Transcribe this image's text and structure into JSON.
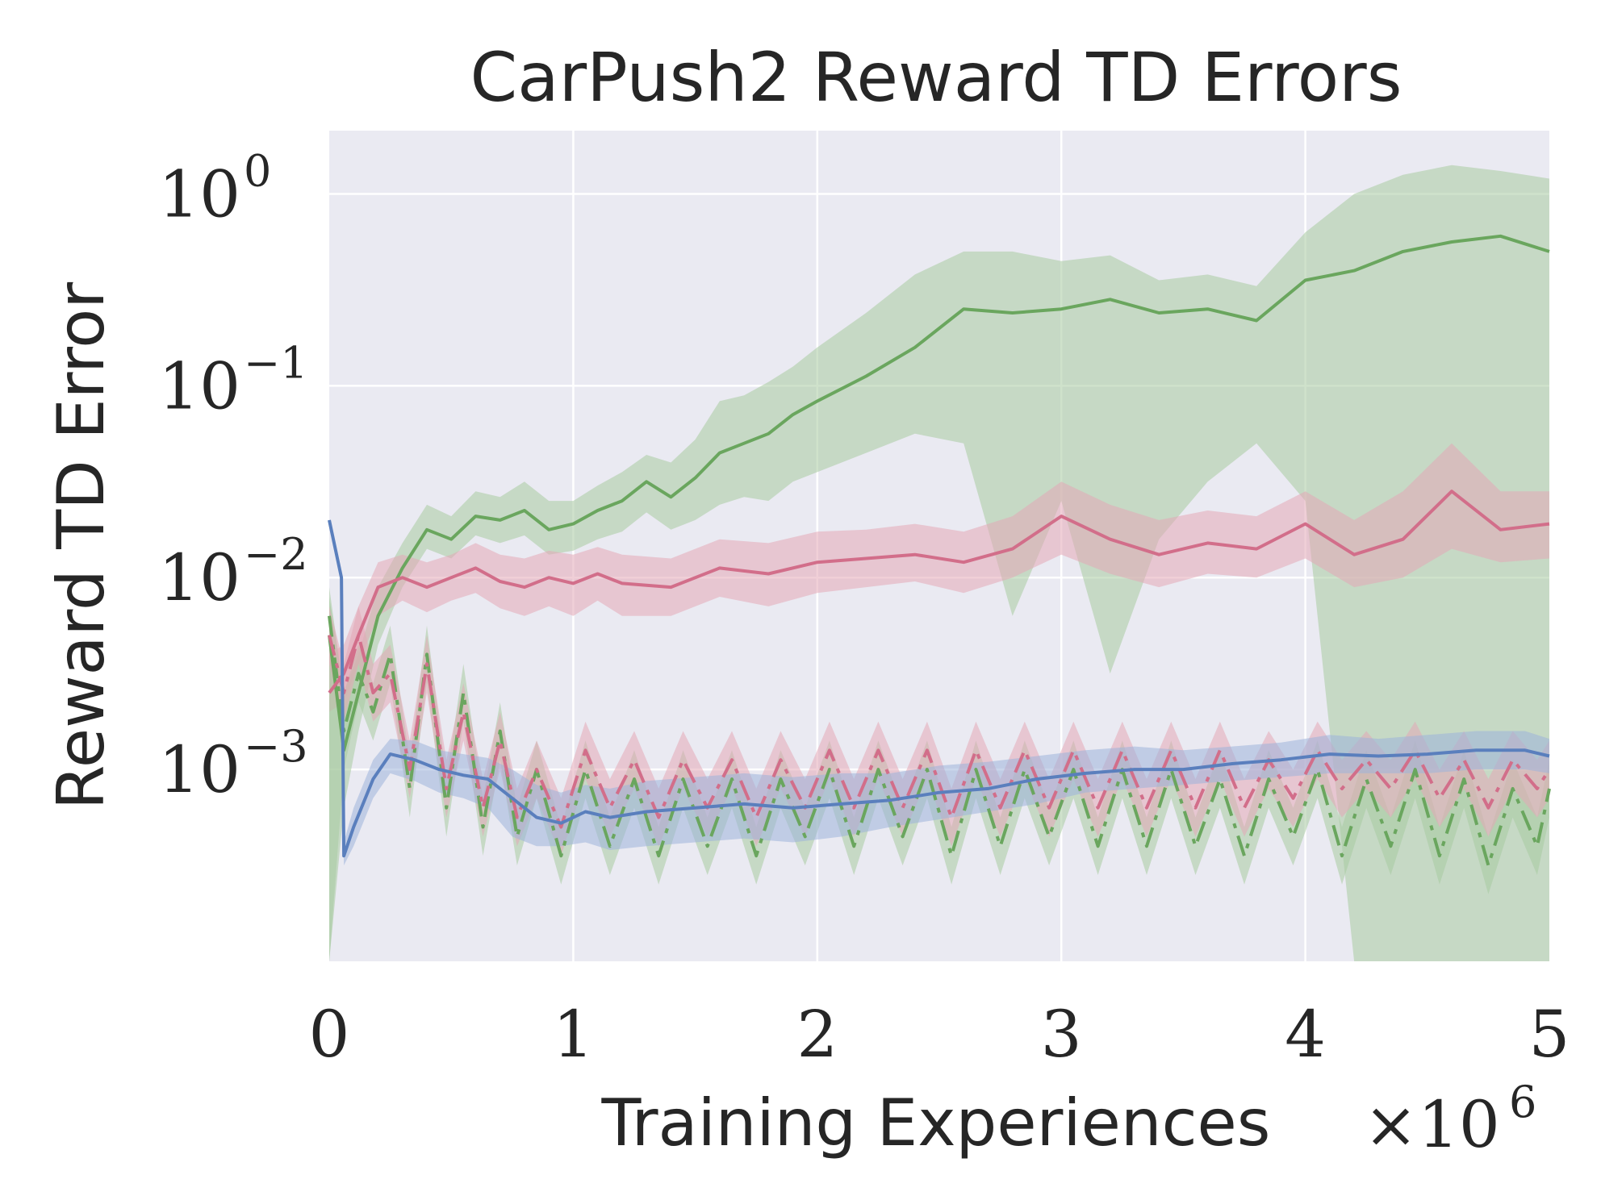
{
  "chart_data": {
    "type": "line",
    "title": "CarPush2 Reward TD Errors",
    "xlabel": "Training Experiences",
    "ylabel": "Reward TD Error",
    "x_multiplier": "×10",
    "x_multiplier_exp": "6",
    "xlim": [
      0,
      5
    ],
    "ylim_log10": [
      -4.0,
      0.33
    ],
    "y_scale": "log",
    "grid": true,
    "x_ticks": [
      {
        "value": 0,
        "label": "0"
      },
      {
        "value": 1,
        "label": "1"
      },
      {
        "value": 2,
        "label": "2"
      },
      {
        "value": 3,
        "label": "3"
      },
      {
        "value": 4,
        "label": "4"
      },
      {
        "value": 5,
        "label": "5"
      }
    ],
    "y_ticks": [
      {
        "log10": 0,
        "base": "10",
        "exp": "0"
      },
      {
        "log10": -1,
        "base": "10",
        "exp": "−1"
      },
      {
        "log10": -2,
        "base": "10",
        "exp": "−2"
      },
      {
        "log10": -3,
        "base": "10",
        "exp": "−3"
      }
    ],
    "series": [
      {
        "name": "green-solid",
        "color": "#6aa65e",
        "band_color": "#a8cba0",
        "dash": "",
        "x": [
          0,
          0.06,
          0.12,
          0.2,
          0.3,
          0.4,
          0.5,
          0.6,
          0.7,
          0.8,
          0.9,
          1.0,
          1.1,
          1.2,
          1.3,
          1.4,
          1.5,
          1.6,
          1.7,
          1.8,
          1.9,
          2.0,
          2.2,
          2.4,
          2.6,
          2.8,
          3.0,
          3.2,
          3.4,
          3.6,
          3.8,
          4.0,
          4.2,
          4.4,
          4.6,
          4.8,
          5.0
        ],
        "log10": [
          -2.3,
          -2.9,
          -2.6,
          -2.2,
          -1.95,
          -1.75,
          -1.8,
          -1.68,
          -1.7,
          -1.65,
          -1.75,
          -1.72,
          -1.65,
          -1.6,
          -1.5,
          -1.58,
          -1.48,
          -1.35,
          -1.3,
          -1.25,
          -1.15,
          -1.08,
          -0.95,
          -0.8,
          -0.6,
          -0.62,
          -0.6,
          -0.55,
          -0.62,
          -0.6,
          -0.66,
          -0.45,
          -0.4,
          -0.3,
          -0.25,
          -0.22,
          -0.3
        ],
        "band_lo": [
          -4.0,
          -3.2,
          -2.8,
          -2.35,
          -2.05,
          -1.85,
          -1.9,
          -1.78,
          -1.82,
          -1.78,
          -1.88,
          -1.86,
          -1.8,
          -1.76,
          -1.66,
          -1.75,
          -1.7,
          -1.62,
          -1.58,
          -1.6,
          -1.5,
          -1.45,
          -1.35,
          -1.25,
          -1.3,
          -2.2,
          -1.6,
          -2.5,
          -1.8,
          -1.5,
          -1.3,
          -1.6,
          -4.0,
          -4.0,
          -4.0,
          -4.0,
          -4.0
        ],
        "band_hi": [
          -2.1,
          -2.6,
          -2.4,
          -2.05,
          -1.82,
          -1.62,
          -1.68,
          -1.55,
          -1.58,
          -1.5,
          -1.6,
          -1.6,
          -1.52,
          -1.45,
          -1.36,
          -1.4,
          -1.28,
          -1.08,
          -1.05,
          -0.98,
          -0.9,
          -0.8,
          -0.62,
          -0.42,
          -0.3,
          -0.3,
          -0.35,
          -0.32,
          -0.45,
          -0.42,
          -0.48,
          -0.2,
          0.0,
          0.1,
          0.15,
          0.12,
          0.08
        ]
      },
      {
        "name": "pink-solid",
        "color": "#d26e8a",
        "band_color": "#e3a7b7",
        "dash": "",
        "x": [
          0,
          0.06,
          0.12,
          0.2,
          0.3,
          0.4,
          0.5,
          0.6,
          0.7,
          0.8,
          0.9,
          1.0,
          1.1,
          1.2,
          1.4,
          1.6,
          1.8,
          2.0,
          2.2,
          2.4,
          2.6,
          2.8,
          3.0,
          3.2,
          3.4,
          3.6,
          3.8,
          4.0,
          4.2,
          4.4,
          4.6,
          4.8,
          5.0
        ],
        "log10": [
          -2.6,
          -2.5,
          -2.3,
          -2.05,
          -2.0,
          -2.05,
          -2.0,
          -1.95,
          -2.02,
          -2.05,
          -2.0,
          -2.03,
          -1.98,
          -2.03,
          -2.05,
          -1.95,
          -1.98,
          -1.92,
          -1.9,
          -1.88,
          -1.92,
          -1.85,
          -1.68,
          -1.8,
          -1.88,
          -1.82,
          -1.85,
          -1.72,
          -1.88,
          -1.8,
          -1.55,
          -1.75,
          -1.72
        ],
        "band_lo": [
          -2.7,
          -2.65,
          -2.45,
          -2.2,
          -2.12,
          -2.18,
          -2.12,
          -2.08,
          -2.16,
          -2.2,
          -2.15,
          -2.2,
          -2.12,
          -2.2,
          -2.2,
          -2.1,
          -2.15,
          -2.08,
          -2.05,
          -2.02,
          -2.08,
          -2.0,
          -1.88,
          -1.98,
          -2.05,
          -1.98,
          -2.0,
          -1.9,
          -2.05,
          -2.0,
          -1.85,
          -1.92,
          -1.9
        ],
        "band_hi": [
          -2.4,
          -2.35,
          -2.15,
          -1.92,
          -1.88,
          -1.92,
          -1.88,
          -1.82,
          -1.88,
          -1.9,
          -1.86,
          -1.88,
          -1.84,
          -1.88,
          -1.9,
          -1.8,
          -1.82,
          -1.76,
          -1.75,
          -1.72,
          -1.76,
          -1.68,
          -1.5,
          -1.62,
          -1.7,
          -1.65,
          -1.68,
          -1.55,
          -1.7,
          -1.55,
          -1.3,
          -1.55,
          -1.55
        ]
      },
      {
        "name": "green-dashdot",
        "color": "#6aa65e",
        "band_color": "#a8cba0",
        "dash": "26 10 6 10",
        "x": [
          0,
          0.06,
          0.12,
          0.18,
          0.25,
          0.33,
          0.4,
          0.48,
          0.55,
          0.63,
          0.7,
          0.77,
          0.85,
          0.95,
          1.05,
          1.15,
          1.25,
          1.35,
          1.45,
          1.55,
          1.65,
          1.75,
          1.85,
          1.95,
          2.05,
          2.15,
          2.25,
          2.35,
          2.45,
          2.55,
          2.65,
          2.75,
          2.85,
          2.95,
          3.05,
          3.15,
          3.25,
          3.35,
          3.45,
          3.55,
          3.65,
          3.75,
          3.85,
          3.95,
          4.05,
          4.15,
          4.25,
          4.35,
          4.45,
          4.55,
          4.65,
          4.75,
          4.85,
          4.95,
          5.0
        ],
        "log10": [
          -2.2,
          -2.8,
          -2.5,
          -2.7,
          -2.4,
          -3.1,
          -2.4,
          -3.2,
          -2.6,
          -3.3,
          -2.8,
          -3.35,
          -3.0,
          -3.45,
          -3.0,
          -3.4,
          -3.05,
          -3.45,
          -3.05,
          -3.4,
          -3.05,
          -3.45,
          -3.05,
          -3.35,
          -3.0,
          -3.4,
          -3.0,
          -3.35,
          -3.0,
          -3.45,
          -3.0,
          -3.4,
          -3.0,
          -3.35,
          -3.0,
          -3.4,
          -3.0,
          -3.4,
          -3.0,
          -3.4,
          -3.05,
          -3.45,
          -3.05,
          -3.35,
          -3.0,
          -3.45,
          -3.05,
          -3.4,
          -3.0,
          -3.45,
          -3.05,
          -3.5,
          -3.1,
          -3.4,
          -3.1
        ],
        "band_lo": [
          -4.0,
          -3.0,
          -2.65,
          -2.85,
          -2.55,
          -3.25,
          -2.55,
          -3.35,
          -2.75,
          -3.45,
          -2.95,
          -3.5,
          -3.15,
          -3.6,
          -3.15,
          -3.55,
          -3.2,
          -3.6,
          -3.2,
          -3.55,
          -3.2,
          -3.6,
          -3.2,
          -3.5,
          -3.15,
          -3.55,
          -3.15,
          -3.5,
          -3.15,
          -3.6,
          -3.15,
          -3.55,
          -3.15,
          -3.5,
          -3.15,
          -3.55,
          -3.15,
          -3.55,
          -3.15,
          -3.55,
          -3.2,
          -3.6,
          -3.2,
          -3.5,
          -3.15,
          -3.6,
          -3.2,
          -3.55,
          -3.15,
          -3.6,
          -3.2,
          -3.65,
          -3.25,
          -3.55,
          -3.25
        ],
        "band_hi": [
          -2.05,
          -2.6,
          -2.35,
          -2.55,
          -2.25,
          -2.95,
          -2.25,
          -3.05,
          -2.45,
          -3.15,
          -2.65,
          -3.2,
          -2.85,
          -3.3,
          -2.85,
          -3.25,
          -2.9,
          -3.3,
          -2.9,
          -3.25,
          -2.9,
          -3.3,
          -2.9,
          -3.2,
          -2.85,
          -3.25,
          -2.85,
          -3.2,
          -2.85,
          -3.3,
          -2.85,
          -3.25,
          -2.85,
          -3.2,
          -2.85,
          -3.25,
          -2.85,
          -3.25,
          -2.85,
          -3.25,
          -2.9,
          -3.3,
          -2.9,
          -3.2,
          -2.85,
          -3.3,
          -2.9,
          -3.25,
          -2.85,
          -3.3,
          -2.9,
          -3.35,
          -2.95,
          -3.25,
          -2.95
        ]
      },
      {
        "name": "pink-dashdot",
        "color": "#d26e8a",
        "band_color": "#e3a7b7",
        "dash": "26 10 6 10",
        "x": [
          0,
          0.06,
          0.12,
          0.18,
          0.25,
          0.33,
          0.4,
          0.48,
          0.55,
          0.63,
          0.7,
          0.77,
          0.85,
          0.95,
          1.05,
          1.15,
          1.25,
          1.35,
          1.45,
          1.55,
          1.65,
          1.75,
          1.85,
          1.95,
          2.05,
          2.15,
          2.25,
          2.35,
          2.45,
          2.55,
          2.65,
          2.75,
          2.85,
          2.95,
          3.05,
          3.15,
          3.25,
          3.35,
          3.45,
          3.55,
          3.65,
          3.75,
          3.85,
          3.95,
          4.05,
          4.15,
          4.25,
          4.35,
          4.45,
          4.55,
          4.65,
          4.75,
          4.85,
          4.95,
          5.0
        ],
        "log10": [
          -2.3,
          -2.6,
          -2.3,
          -2.6,
          -2.5,
          -3.0,
          -2.45,
          -3.1,
          -2.7,
          -3.2,
          -2.85,
          -3.25,
          -3.0,
          -3.3,
          -2.9,
          -3.2,
          -2.95,
          -3.25,
          -2.95,
          -3.2,
          -2.95,
          -3.25,
          -2.95,
          -3.2,
          -2.9,
          -3.2,
          -2.9,
          -3.2,
          -2.9,
          -3.25,
          -2.9,
          -3.2,
          -2.9,
          -3.2,
          -2.9,
          -3.2,
          -2.9,
          -3.2,
          -2.9,
          -3.2,
          -2.9,
          -3.2,
          -2.95,
          -3.15,
          -2.9,
          -3.1,
          -2.95,
          -3.1,
          -2.9,
          -3.15,
          -2.95,
          -3.2,
          -2.95,
          -3.1,
          -3.0
        ],
        "band_lo": [
          -2.45,
          -2.75,
          -2.45,
          -2.75,
          -2.65,
          -3.15,
          -2.6,
          -3.25,
          -2.85,
          -3.35,
          -3.0,
          -3.4,
          -3.15,
          -3.45,
          -3.05,
          -3.35,
          -3.1,
          -3.4,
          -3.1,
          -3.35,
          -3.1,
          -3.4,
          -3.1,
          -3.35,
          -3.05,
          -3.35,
          -3.05,
          -3.35,
          -3.05,
          -3.4,
          -3.05,
          -3.35,
          -3.05,
          -3.35,
          -3.05,
          -3.35,
          -3.05,
          -3.35,
          -3.05,
          -3.35,
          -3.05,
          -3.35,
          -3.1,
          -3.3,
          -3.05,
          -3.25,
          -3.1,
          -3.25,
          -3.05,
          -3.3,
          -3.1,
          -3.35,
          -3.1,
          -3.25,
          -3.15
        ],
        "band_hi": [
          -2.15,
          -2.45,
          -2.15,
          -2.45,
          -2.35,
          -2.85,
          -2.3,
          -2.95,
          -2.55,
          -3.05,
          -2.7,
          -3.1,
          -2.85,
          -3.15,
          -2.75,
          -3.05,
          -2.8,
          -3.1,
          -2.8,
          -3.05,
          -2.8,
          -3.1,
          -2.8,
          -3.05,
          -2.75,
          -3.05,
          -2.75,
          -3.05,
          -2.75,
          -3.1,
          -2.75,
          -3.05,
          -2.75,
          -3.05,
          -2.75,
          -3.05,
          -2.75,
          -3.05,
          -2.75,
          -3.05,
          -2.75,
          -3.05,
          -2.8,
          -3.0,
          -2.75,
          -2.95,
          -2.8,
          -2.95,
          -2.75,
          -3.0,
          -2.8,
          -3.05,
          -2.8,
          -2.95,
          -2.85
        ]
      },
      {
        "name": "blue-solid",
        "color": "#5a7fbd",
        "band_color": "#9db2da",
        "dash": "",
        "x": [
          0,
          0.05,
          0.06,
          0.1,
          0.18,
          0.25,
          0.35,
          0.45,
          0.55,
          0.65,
          0.75,
          0.85,
          0.95,
          1.05,
          1.15,
          1.3,
          1.5,
          1.7,
          1.9,
          2.1,
          2.3,
          2.5,
          2.7,
          2.9,
          3.1,
          3.3,
          3.5,
          3.7,
          3.9,
          4.1,
          4.3,
          4.5,
          4.7,
          4.9,
          5.0
        ],
        "log10": [
          -1.7,
          -2.0,
          -3.45,
          -3.3,
          -3.05,
          -2.92,
          -2.95,
          -3.0,
          -3.03,
          -3.05,
          -3.15,
          -3.25,
          -3.28,
          -3.22,
          -3.25,
          -3.22,
          -3.2,
          -3.18,
          -3.2,
          -3.18,
          -3.16,
          -3.12,
          -3.1,
          -3.05,
          -3.02,
          -3.0,
          -3.0,
          -2.97,
          -2.95,
          -2.92,
          -2.93,
          -2.92,
          -2.9,
          -2.9,
          -2.93
        ],
        "band_lo": [
          -1.7,
          -2.0,
          -3.5,
          -3.4,
          -3.15,
          -3.02,
          -3.06,
          -3.12,
          -3.15,
          -3.2,
          -3.35,
          -3.4,
          -3.4,
          -3.38,
          -3.42,
          -3.4,
          -3.38,
          -3.36,
          -3.38,
          -3.35,
          -3.3,
          -3.26,
          -3.22,
          -3.18,
          -3.12,
          -3.1,
          -3.08,
          -3.06,
          -3.04,
          -3.02,
          -3.02,
          -3.02,
          -3.0,
          -3.0,
          -3.02
        ],
        "band_hi": [
          -1.7,
          -2.0,
          -3.38,
          -3.2,
          -2.95,
          -2.84,
          -2.85,
          -2.9,
          -2.92,
          -2.94,
          -3.0,
          -3.08,
          -3.12,
          -3.08,
          -3.1,
          -3.06,
          -3.04,
          -3.02,
          -3.04,
          -3.02,
          -3.02,
          -2.98,
          -2.96,
          -2.93,
          -2.9,
          -2.88,
          -2.9,
          -2.88,
          -2.86,
          -2.82,
          -2.84,
          -2.82,
          -2.8,
          -2.8,
          -2.84
        ]
      }
    ]
  }
}
